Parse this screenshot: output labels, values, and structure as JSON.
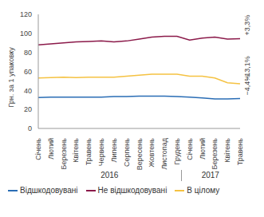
{
  "chart_data": {
    "type": "line",
    "y_label": "Грн. за 1 упаковку",
    "categories": [
      "Січень",
      "Лютий",
      "Березень",
      "Квітень",
      "Травень",
      "Червень",
      "Липень",
      "Серпень",
      "Вересень",
      "Жовтень",
      "Листопад",
      "Грудень",
      "Січень",
      "Лютий",
      "Березень",
      "Квітень",
      "Травень"
    ],
    "groups": [
      {
        "label": "2016",
        "count": 12
      },
      {
        "label": "2017",
        "count": 5
      }
    ],
    "series": [
      {
        "name": "Відшкодовувані",
        "color": "#2a6db5",
        "annotation": "−4,4%",
        "values": [
          32.5,
          33,
          33,
          33,
          33,
          33,
          33.5,
          33.5,
          34,
          34,
          34,
          33.5,
          33,
          32,
          31,
          31,
          31.5
        ]
      },
      {
        "name": "Не відшкодовувані",
        "color": "#8b1a4a",
        "annotation": "+3,3%",
        "values": [
          88,
          89,
          90,
          91,
          91.5,
          92,
          91,
          92,
          94,
          96,
          97,
          97,
          93,
          95,
          96,
          94,
          94.5
        ]
      },
      {
        "name": "В цілому",
        "color": "#f5c242",
        "annotation": "−13,1%",
        "values": [
          53,
          53.5,
          54,
          53.5,
          54,
          54,
          54,
          55,
          56,
          57,
          57,
          57,
          55,
          55,
          53,
          48,
          47
        ]
      }
    ],
    "ylim": [
      0,
      120
    ],
    "yticks": [
      0,
      20,
      40,
      60,
      80,
      100,
      120
    ],
    "grid": false,
    "legend": "bottom"
  }
}
